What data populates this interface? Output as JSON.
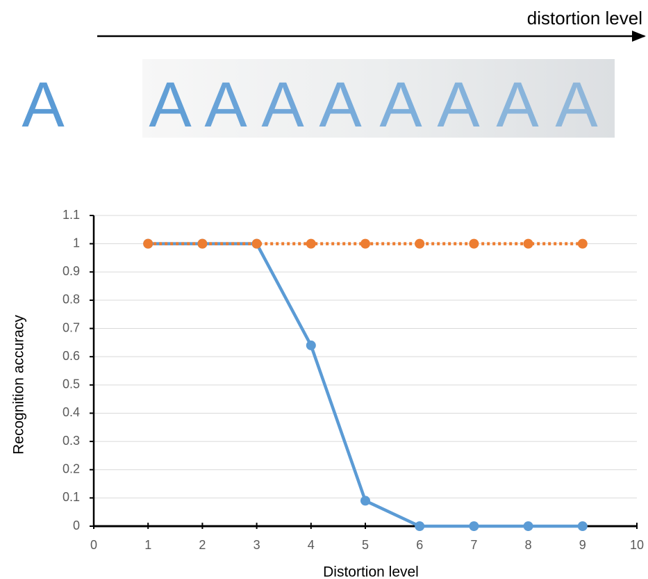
{
  "illustration": {
    "arrow_label": "distortion level",
    "letters": [
      "A",
      "A",
      "A",
      "A",
      "A",
      "A",
      "A",
      "A",
      "A"
    ]
  },
  "chart_data": {
    "type": "line",
    "x": [
      1,
      2,
      3,
      4,
      5,
      6,
      7,
      8,
      9
    ],
    "series": [
      {
        "color": "#5b9bd5",
        "linestyle": "solid",
        "values": [
          1,
          1,
          1,
          0.64,
          0.09,
          0,
          0,
          0,
          0
        ]
      },
      {
        "color": "#ed7d31",
        "linestyle": "dotted",
        "values": [
          1,
          1,
          1,
          1,
          1,
          1,
          1,
          1,
          1
        ]
      }
    ],
    "xlabel": "Distortion level",
    "ylabel": "Recognition accuracy",
    "xlim": [
      0,
      10
    ],
    "xticks": [
      0,
      1,
      2,
      3,
      4,
      5,
      6,
      7,
      8,
      9,
      10
    ],
    "ylim": [
      0,
      1.1
    ],
    "yticks": [
      0,
      0.1,
      0.2,
      0.3,
      0.4,
      0.5,
      0.6,
      0.7,
      0.8,
      0.9,
      1,
      1.1
    ],
    "grid": true
  }
}
